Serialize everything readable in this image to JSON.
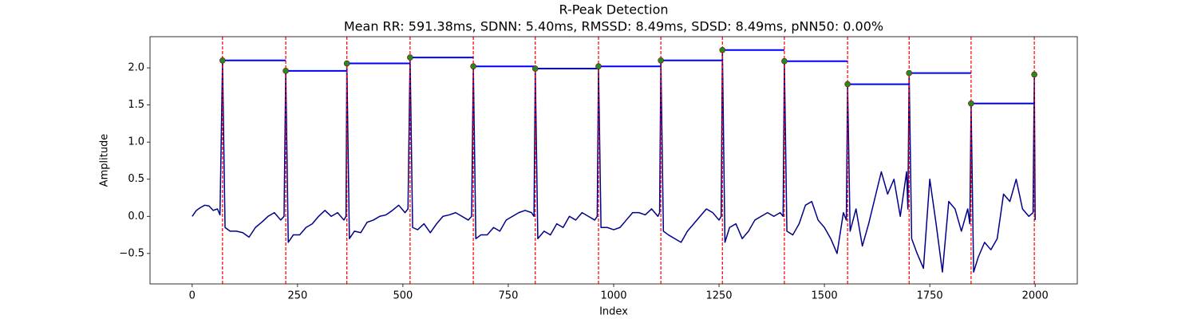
{
  "chart_data": {
    "type": "line",
    "title": "R-Peak Detection",
    "subtitle": "Mean RR: 591.38ms, SDNN: 5.40ms, RMSSD: 8.49ms, SDSD: 8.49ms, pNN50: 0.00%",
    "xlabel": "Index",
    "ylabel": "Amplitude",
    "xlim": [
      -100,
      2100
    ],
    "ylim": [
      -0.91,
      2.42
    ],
    "xticks": [
      0,
      250,
      500,
      750,
      1000,
      1250,
      1500,
      1750,
      2000
    ],
    "yticks": [
      {
        "value": -0.5,
        "label": "−0.5"
      },
      {
        "value": 0,
        "label": "0.0"
      },
      0.5,
      {
        "value": 1,
        "label": "1.0"
      },
      1.5,
      {
        "value": 2,
        "label": "2.0"
      }
    ],
    "grid": false,
    "series": [
      {
        "type": "line",
        "color": "#00008b",
        "x": [
          0,
          10,
          20,
          30,
          40,
          50,
          60,
          66,
          72,
          78,
          90,
          105,
          120,
          135,
          150,
          165,
          180,
          195,
          210,
          218,
          222,
          228,
          240,
          255,
          270,
          285,
          300,
          315,
          330,
          345,
          360,
          365,
          367,
          373,
          385,
          400,
          415,
          430,
          445,
          460,
          475,
          490,
          505,
          512,
          517,
          523,
          535,
          550,
          565,
          580,
          595,
          610,
          625,
          640,
          655,
          663,
          667,
          673,
          685,
          700,
          715,
          730,
          745,
          760,
          775,
          790,
          805,
          811,
          814,
          820,
          835,
          850,
          865,
          880,
          895,
          910,
          925,
          940,
          955,
          961,
          964,
          970,
          985,
          1000,
          1015,
          1030,
          1045,
          1060,
          1075,
          1090,
          1105,
          1109,
          1112,
          1118,
          1130,
          1145,
          1160,
          1175,
          1190,
          1205,
          1220,
          1235,
          1250,
          1255,
          1258,
          1264,
          1275,
          1290,
          1305,
          1320,
          1335,
          1350,
          1365,
          1380,
          1395,
          1402,
          1405,
          1411,
          1425,
          1440,
          1455,
          1470,
          1485,
          1500,
          1515,
          1530,
          1545,
          1552,
          1555,
          1561,
          1575,
          1590,
          1605,
          1620,
          1635,
          1650,
          1665,
          1680,
          1695,
          1698,
          1701,
          1707,
          1720,
          1735,
          1750,
          1765,
          1780,
          1795,
          1810,
          1825,
          1840,
          1845,
          1848,
          1854,
          1865,
          1880,
          1895,
          1910,
          1925,
          1940,
          1955,
          1970,
          1985,
          1995,
          1998,
          2000
        ],
        "values": [
          0.0,
          0.08,
          0.12,
          0.15,
          0.14,
          0.08,
          0.1,
          0.02,
          2.1,
          -0.15,
          -0.2,
          -0.2,
          -0.22,
          -0.28,
          -0.15,
          -0.08,
          0.0,
          0.05,
          -0.05,
          0.0,
          1.96,
          -0.35,
          -0.25,
          -0.25,
          -0.15,
          -0.1,
          0.0,
          0.08,
          0.0,
          0.05,
          -0.05,
          0.0,
          2.06,
          -0.3,
          -0.2,
          -0.22,
          -0.08,
          -0.05,
          0.0,
          0.02,
          0.08,
          0.15,
          0.05,
          0.1,
          2.14,
          -0.15,
          -0.18,
          -0.1,
          -0.22,
          -0.1,
          0.0,
          0.02,
          0.05,
          0.0,
          -0.05,
          0.0,
          2.02,
          -0.3,
          -0.25,
          -0.25,
          -0.15,
          -0.2,
          -0.05,
          0.0,
          0.05,
          0.08,
          0.05,
          0.0,
          1.99,
          -0.3,
          -0.2,
          -0.25,
          -0.1,
          -0.15,
          0.0,
          -0.05,
          0.05,
          0.0,
          -0.05,
          0.0,
          2.02,
          -0.15,
          -0.15,
          -0.18,
          -0.15,
          -0.05,
          0.05,
          0.05,
          0.02,
          0.1,
          0.0,
          0.05,
          2.1,
          -0.2,
          -0.25,
          -0.3,
          -0.35,
          -0.2,
          -0.1,
          0.0,
          0.1,
          0.05,
          -0.05,
          0.0,
          2.24,
          -0.35,
          -0.15,
          -0.1,
          -0.3,
          -0.2,
          -0.05,
          0.0,
          0.05,
          0.0,
          0.05,
          0.0,
          2.09,
          -0.2,
          -0.25,
          -0.1,
          0.15,
          0.2,
          -0.05,
          -0.15,
          -0.3,
          -0.5,
          0.05,
          -0.05,
          1.78,
          -0.2,
          0.1,
          -0.4,
          -0.1,
          0.25,
          0.6,
          0.3,
          0.5,
          0.0,
          0.6,
          0.1,
          1.93,
          -0.3,
          -0.5,
          -0.7,
          0.5,
          -0.1,
          -0.75,
          0.2,
          0.1,
          -0.2,
          0.1,
          -0.1,
          1.52,
          -0.75,
          -0.55,
          -0.35,
          -0.45,
          -0.3,
          0.3,
          0.2,
          0.5,
          0.1,
          0.0,
          0.05,
          1.91,
          -0.05
        ]
      },
      {
        "type": "scatter",
        "color": "#228b22",
        "edge_color": "#8b0000",
        "hline_color": "#0000ff",
        "vline_color": "#ff0000",
        "x": [
          72,
          222,
          367,
          517,
          667,
          814,
          964,
          1112,
          1258,
          1405,
          1555,
          1701,
          1848,
          1998
        ],
        "values": [
          2.1,
          1.96,
          2.06,
          2.14,
          2.02,
          1.99,
          2.02,
          2.1,
          2.24,
          2.09,
          1.78,
          1.93,
          1.52,
          1.91
        ]
      }
    ]
  }
}
